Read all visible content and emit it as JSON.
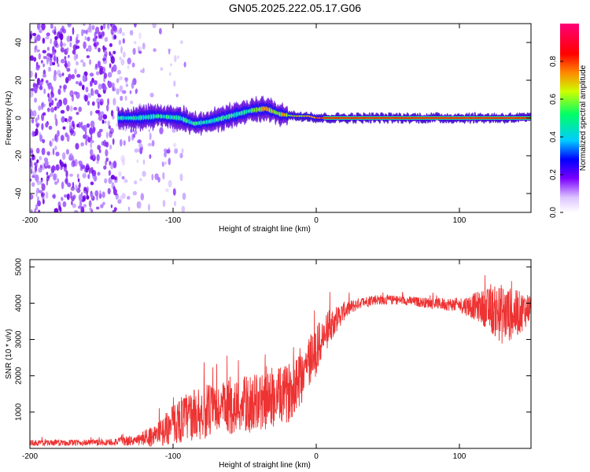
{
  "title": "GN05.2025.222.05.17.G06",
  "chart_data": [
    {
      "type": "heatmap",
      "xlabel": "Height of straight line (km)",
      "ylabel": "Frequency (Hz)",
      "xlim": [
        -200,
        150
      ],
      "ylim": [
        -50,
        50
      ],
      "xticks": [
        -200,
        -100,
        0,
        100
      ],
      "yticks": [
        -40,
        -20,
        0,
        20,
        40
      ],
      "colorbar": {
        "label": "Normalized spectral amplitude",
        "range": [
          0,
          1
        ],
        "ticks": [
          0,
          0.2,
          0.4,
          0.6,
          0.8
        ],
        "colors": [
          "#ffffff",
          "#7a00ff",
          "#0000ff",
          "#00ccff",
          "#00ff66",
          "#ccff00",
          "#ff8800",
          "#ff0000",
          "#ff0077"
        ]
      },
      "ridge": {
        "x": [
          -138,
          -125,
          -110,
          -95,
          -85,
          -75,
          -65,
          -55,
          -45,
          -35,
          -25,
          -15,
          -5,
          0,
          10,
          20,
          40,
          60,
          80,
          100,
          120,
          140,
          150
        ],
        "freq": [
          0,
          0,
          1,
          0,
          -3,
          -2,
          0,
          2,
          4,
          5,
          2,
          1,
          1,
          0,
          0,
          0,
          0,
          0,
          0,
          0,
          0,
          0,
          0
        ]
      },
      "noise_region": [
        -200,
        -100
      ]
    },
    {
      "type": "line",
      "xlabel": "Height of straight line (km)",
      "ylabel": "SNR (10 * v/v)",
      "xlim": [
        -200,
        150
      ],
      "ylim": [
        0,
        5200
      ],
      "xticks": [
        -200,
        -100,
        0,
        100
      ],
      "yticks": [
        1000,
        2000,
        3000,
        4000,
        5000
      ],
      "color": "#ee3333",
      "envelope": {
        "x": [
          -200,
          -150,
          -125,
          -110,
          -95,
          -80,
          -65,
          -50,
          -35,
          -20,
          -10,
          0,
          10,
          20,
          30,
          40,
          60,
          80,
          100,
          115,
          130,
          140,
          150
        ],
        "mean": [
          150,
          160,
          220,
          400,
          800,
          1000,
          1100,
          1200,
          1300,
          1500,
          2100,
          2700,
          3400,
          3800,
          4000,
          4100,
          4080,
          4000,
          3950,
          3900,
          3700,
          3700,
          3900
        ],
        "spread": [
          80,
          90,
          150,
          350,
          650,
          750,
          750,
          800,
          800,
          800,
          900,
          700,
          450,
          250,
          150,
          150,
          120,
          150,
          200,
          450,
          850,
          650,
          400
        ]
      }
    }
  ]
}
